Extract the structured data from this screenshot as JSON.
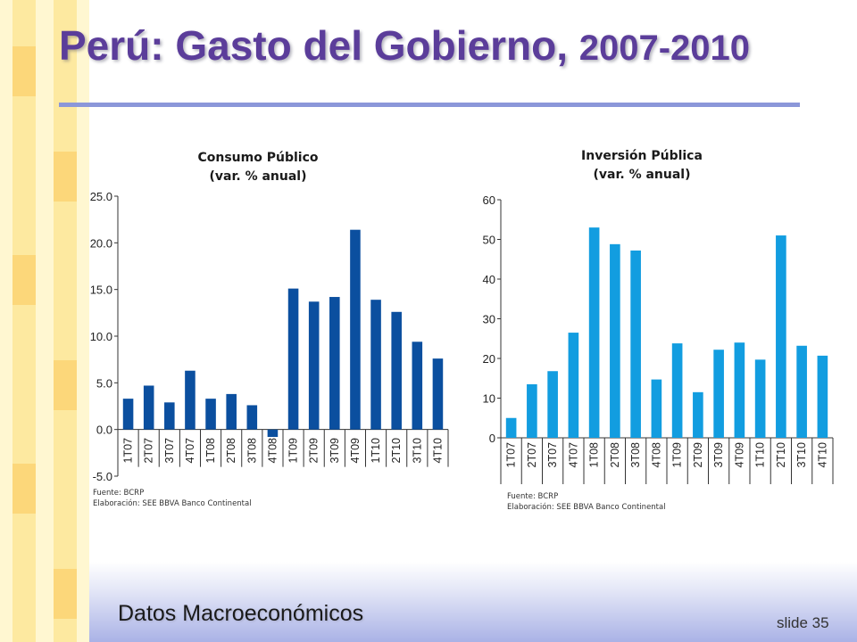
{
  "slide": {
    "title_main": "Perú: Gasto del Gobierno, ",
    "title_years": "2007-2010",
    "footer": "Datos Macroeconómicos",
    "slide_number": "slide 35"
  },
  "colors": {
    "title": "#5b3d9a",
    "rule": "#8b97d9",
    "consumo_bar": "#0b4f9f",
    "inversion_bar": "#129de0"
  },
  "chart_data": [
    {
      "type": "bar",
      "title": "Consumo Público",
      "subtitle": "(var. % anual)",
      "categories": [
        "1T07",
        "2T07",
        "3T07",
        "4T07",
        "1T08",
        "2T08",
        "3T08",
        "4T08",
        "1T09",
        "2T09",
        "3T09",
        "4T09",
        "1T10",
        "2T10",
        "3T10",
        "4T10"
      ],
      "values": [
        3.3,
        4.7,
        2.9,
        6.3,
        3.3,
        3.8,
        2.6,
        -0.8,
        15.1,
        13.7,
        14.2,
        21.4,
        13.9,
        12.6,
        9.4,
        7.6
      ],
      "ylim": [
        -5,
        25
      ],
      "yticks": [
        "-5.0",
        "0.0",
        "5.0",
        "10.0",
        "15.0",
        "20.0",
        "25.0"
      ],
      "source": "Fuente: BCRP",
      "credit": "Elaboración: SEE BBVA Banco Continental"
    },
    {
      "type": "bar",
      "title": "Inversión Pública",
      "subtitle": "(var. % anual)",
      "categories": [
        "1T07",
        "2T07",
        "3T07",
        "4T07",
        "1T08",
        "2T08",
        "3T08",
        "4T08",
        "1T09",
        "2T09",
        "3T09",
        "4T09",
        "1T10",
        "2T10",
        "3T10",
        "4T10"
      ],
      "values": [
        5.0,
        13.5,
        16.8,
        26.5,
        53.0,
        48.8,
        47.2,
        14.7,
        23.8,
        11.5,
        22.2,
        24.0,
        19.7,
        51.0,
        23.2,
        20.7
      ],
      "ylim": [
        0,
        60
      ],
      "yticks": [
        "0",
        "10",
        "20",
        "30",
        "40",
        "50",
        "60"
      ],
      "source": "Fuente: BCRP",
      "credit": "Elaboración: SEE BBVA Banco Continental"
    }
  ]
}
